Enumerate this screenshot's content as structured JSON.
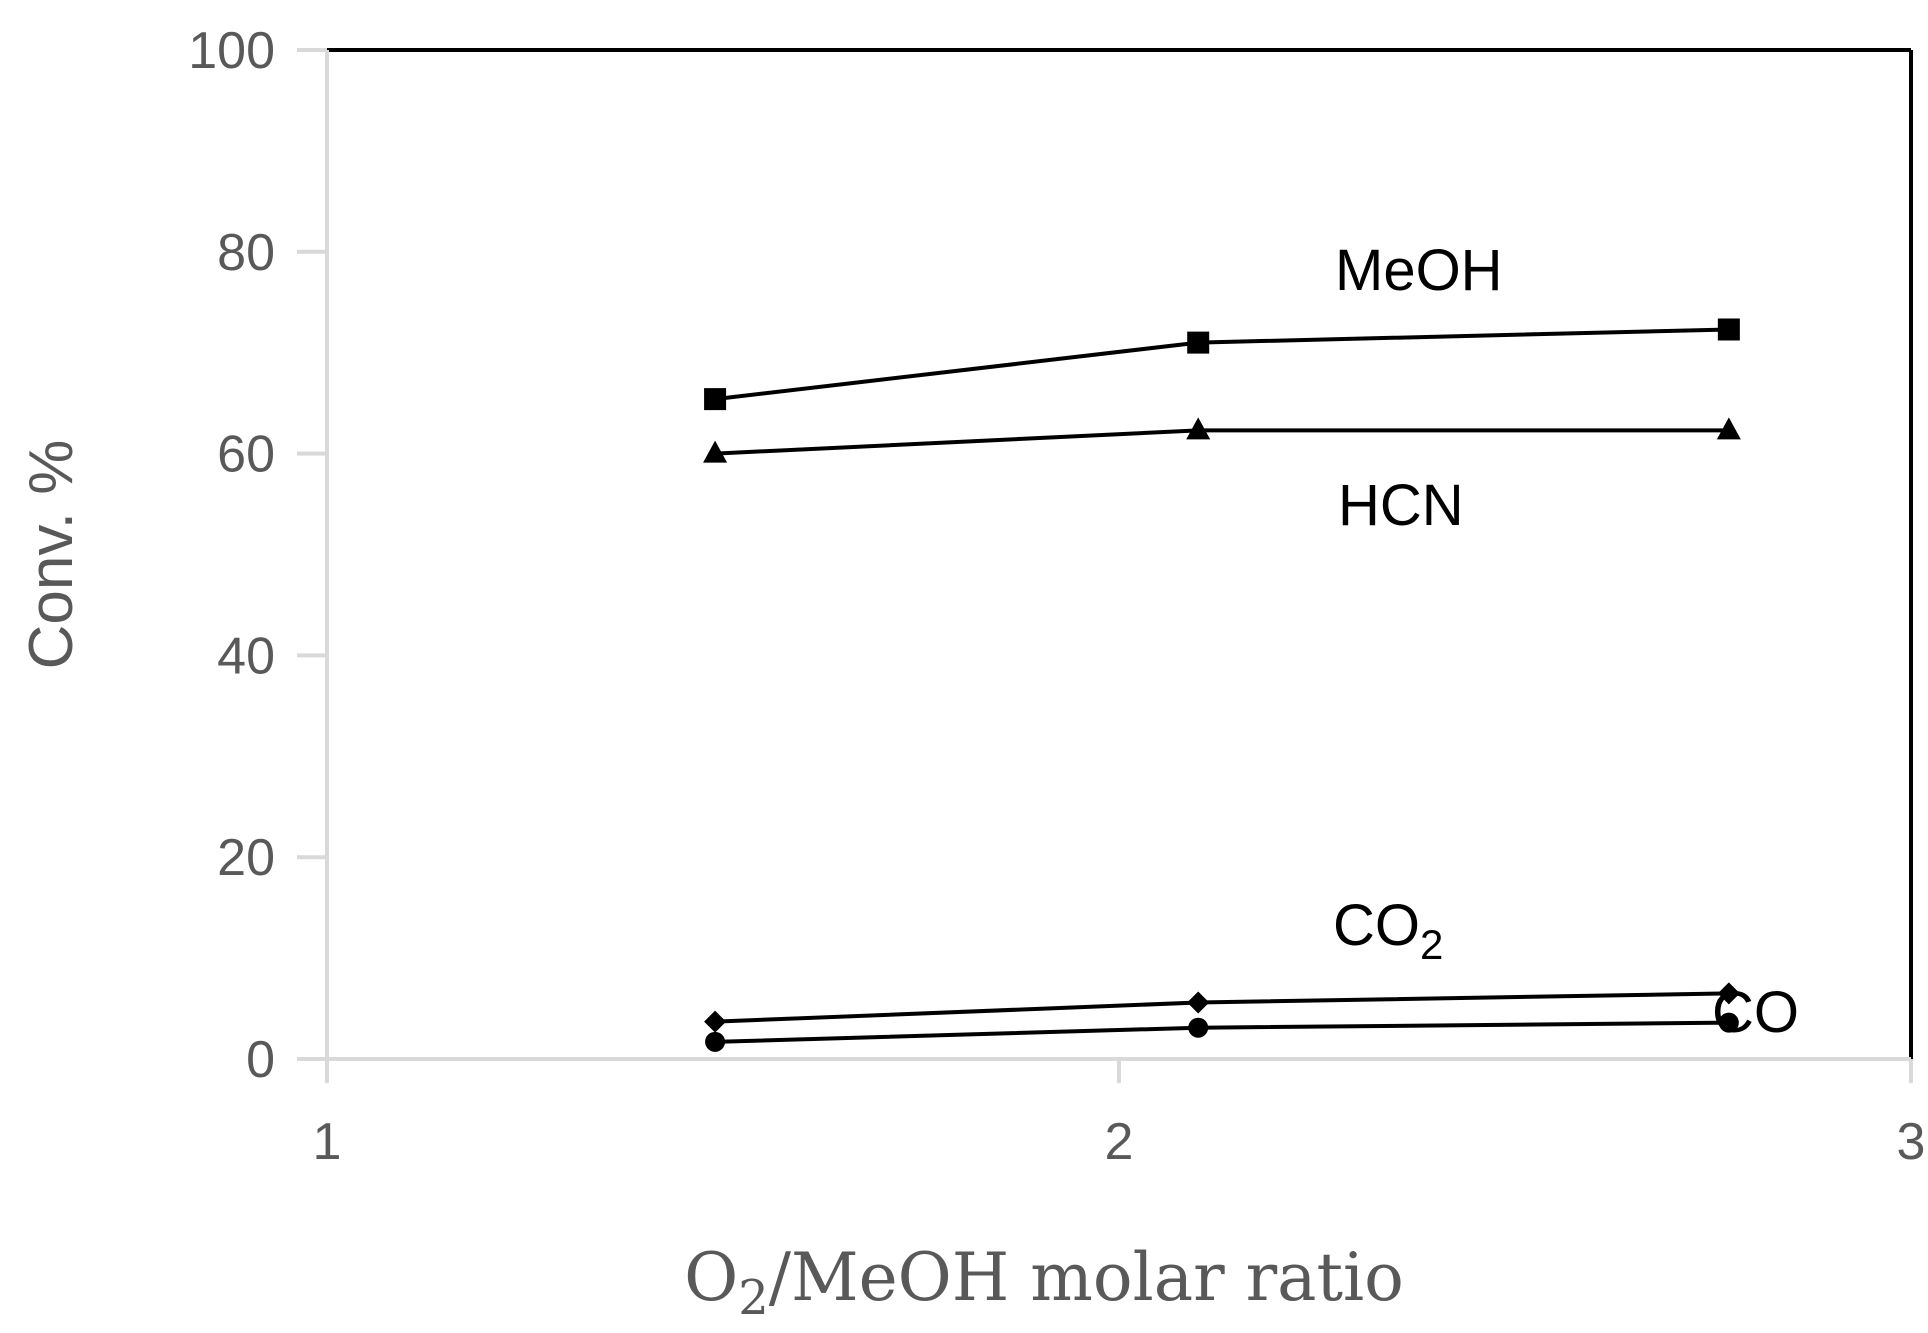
{
  "chart_data": {
    "type": "line",
    "xlabel": "O2/MeOH molar ratio",
    "xlabel_parts": {
      "base": "O",
      "sub": "2",
      "rest": "/MeOH molar ratio"
    },
    "ylabel": "Conv. %",
    "xlim": [
      1,
      3
    ],
    "ylim": [
      0,
      100
    ],
    "xticks": [
      "1",
      "2",
      "3"
    ],
    "xtick_values": [
      1,
      2,
      3
    ],
    "yticks": [
      "0",
      "20",
      "40",
      "60",
      "80",
      "100"
    ],
    "ytick_values": [
      0,
      20,
      40,
      60,
      80,
      100
    ],
    "grid": false,
    "legend": "none",
    "series": [
      {
        "name": "MeOH",
        "marker": "square",
        "x": [
          1.49,
          2.1,
          2.77
        ],
        "y": [
          65.4,
          71.0,
          72.3
        ]
      },
      {
        "name": "HCN",
        "marker": "triangle",
        "x": [
          1.49,
          2.1,
          2.77
        ],
        "y": [
          60.0,
          62.3,
          62.3
        ]
      },
      {
        "name": "CO2",
        "label_base": "CO",
        "label_sub": "2",
        "marker": "diamond",
        "x": [
          1.49,
          2.1,
          2.77
        ],
        "y": [
          3.7,
          5.6,
          6.5
        ]
      },
      {
        "name": "CO",
        "marker": "circle",
        "x": [
          1.49,
          2.1,
          2.77
        ],
        "y": [
          1.7,
          3.1,
          3.6
        ]
      }
    ],
    "colors": {
      "line": "#000000",
      "axis": "#d9d9d9",
      "text": "#595959"
    }
  }
}
